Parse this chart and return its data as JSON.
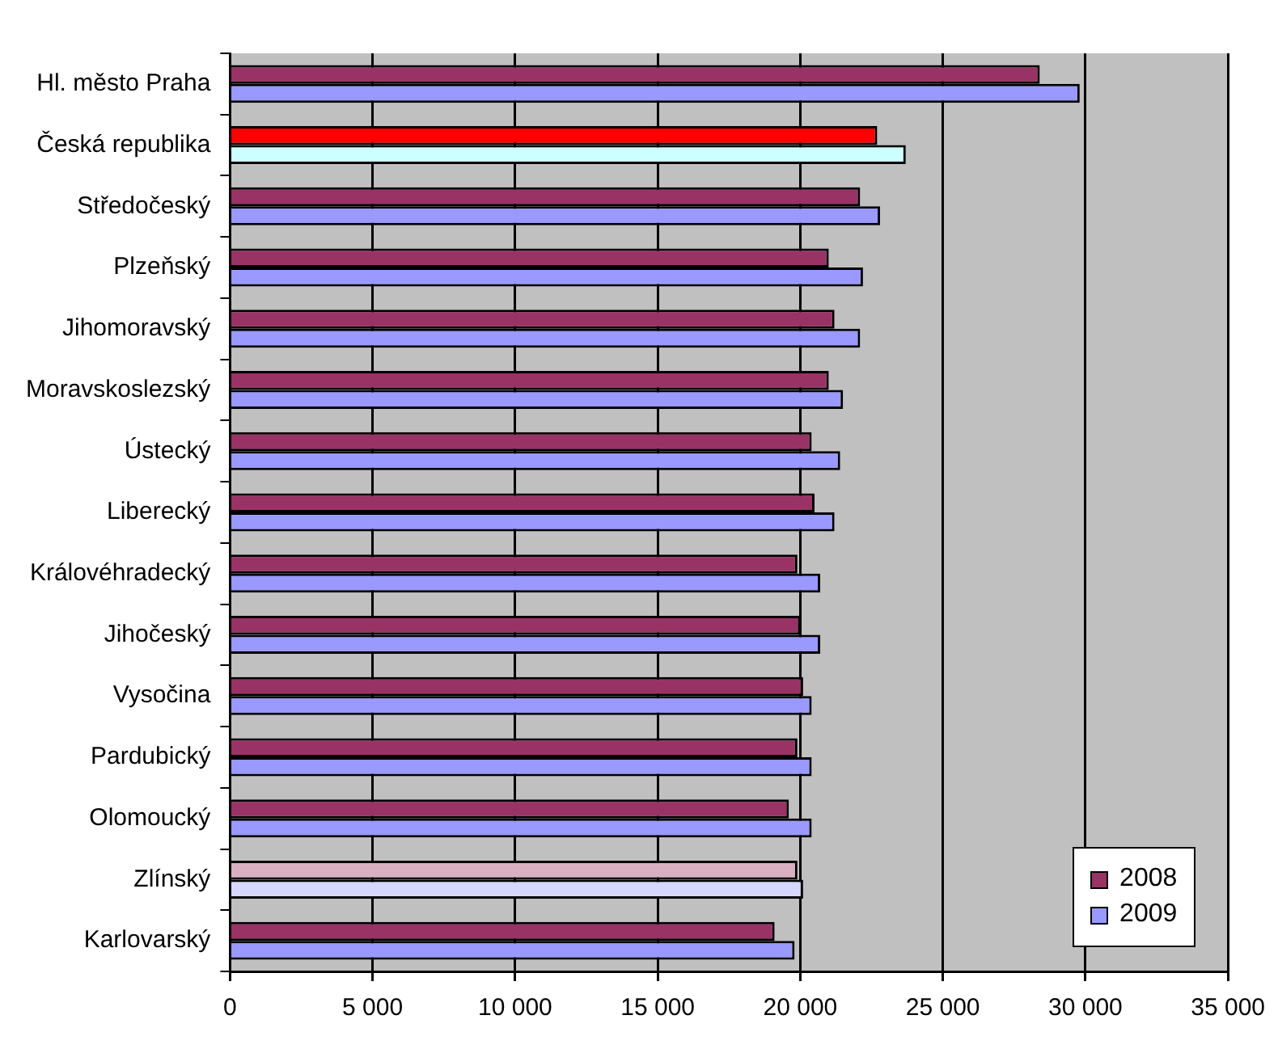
{
  "chart_data": {
    "type": "bar",
    "orientation": "horizontal",
    "categories": [
      "Hl. město Praha",
      "Česká republika",
      "Středočeský",
      "Plzeňský",
      "Jihomoravský",
      "Moravskoslezský",
      "Ústecký",
      "Liberecký",
      "Královéhradecký",
      "Jihočeský",
      "Vysočina",
      "Pardubický",
      "Olomoucký",
      "Zlínský",
      "Karlovarský"
    ],
    "series": [
      {
        "name": "2008",
        "color": "#993366",
        "colors": [
          "#993366",
          "#ff0000",
          "#993366",
          "#993366",
          "#993366",
          "#993366",
          "#993366",
          "#993366",
          "#993366",
          "#993366",
          "#993366",
          "#993366",
          "#993366",
          "#d8b0c2",
          "#993366"
        ],
        "values": [
          28400,
          22700,
          22100,
          21000,
          21200,
          21000,
          20400,
          20500,
          19900,
          20000,
          20100,
          19900,
          19600,
          19900,
          19100
        ]
      },
      {
        "name": "2009",
        "color": "#9999ff",
        "colors": [
          "#9999ff",
          "#ccffff",
          "#9999ff",
          "#9999ff",
          "#9999ff",
          "#9999ff",
          "#9999ff",
          "#9999ff",
          "#9999ff",
          "#9999ff",
          "#9999ff",
          "#9999ff",
          "#9999ff",
          "#d6d6ff",
          "#9999ff"
        ],
        "values": [
          29800,
          23700,
          22800,
          22200,
          22100,
          21500,
          21400,
          21200,
          20700,
          20700,
          20400,
          20400,
          20400,
          20100,
          19800
        ]
      }
    ],
    "xlim": [
      0,
      35000
    ],
    "xticks": [
      {
        "value": 0,
        "label": "0"
      },
      {
        "value": 5000,
        "label": "5 000"
      },
      {
        "value": 10000,
        "label": "10 000"
      },
      {
        "value": 15000,
        "label": "15 000"
      },
      {
        "value": 20000,
        "label": "20 000"
      },
      {
        "value": 25000,
        "label": "25 000"
      },
      {
        "value": 30000,
        "label": "30 000"
      },
      {
        "value": 35000,
        "label": "35 000"
      }
    ],
    "grid": "x",
    "legend": "bottom right"
  }
}
